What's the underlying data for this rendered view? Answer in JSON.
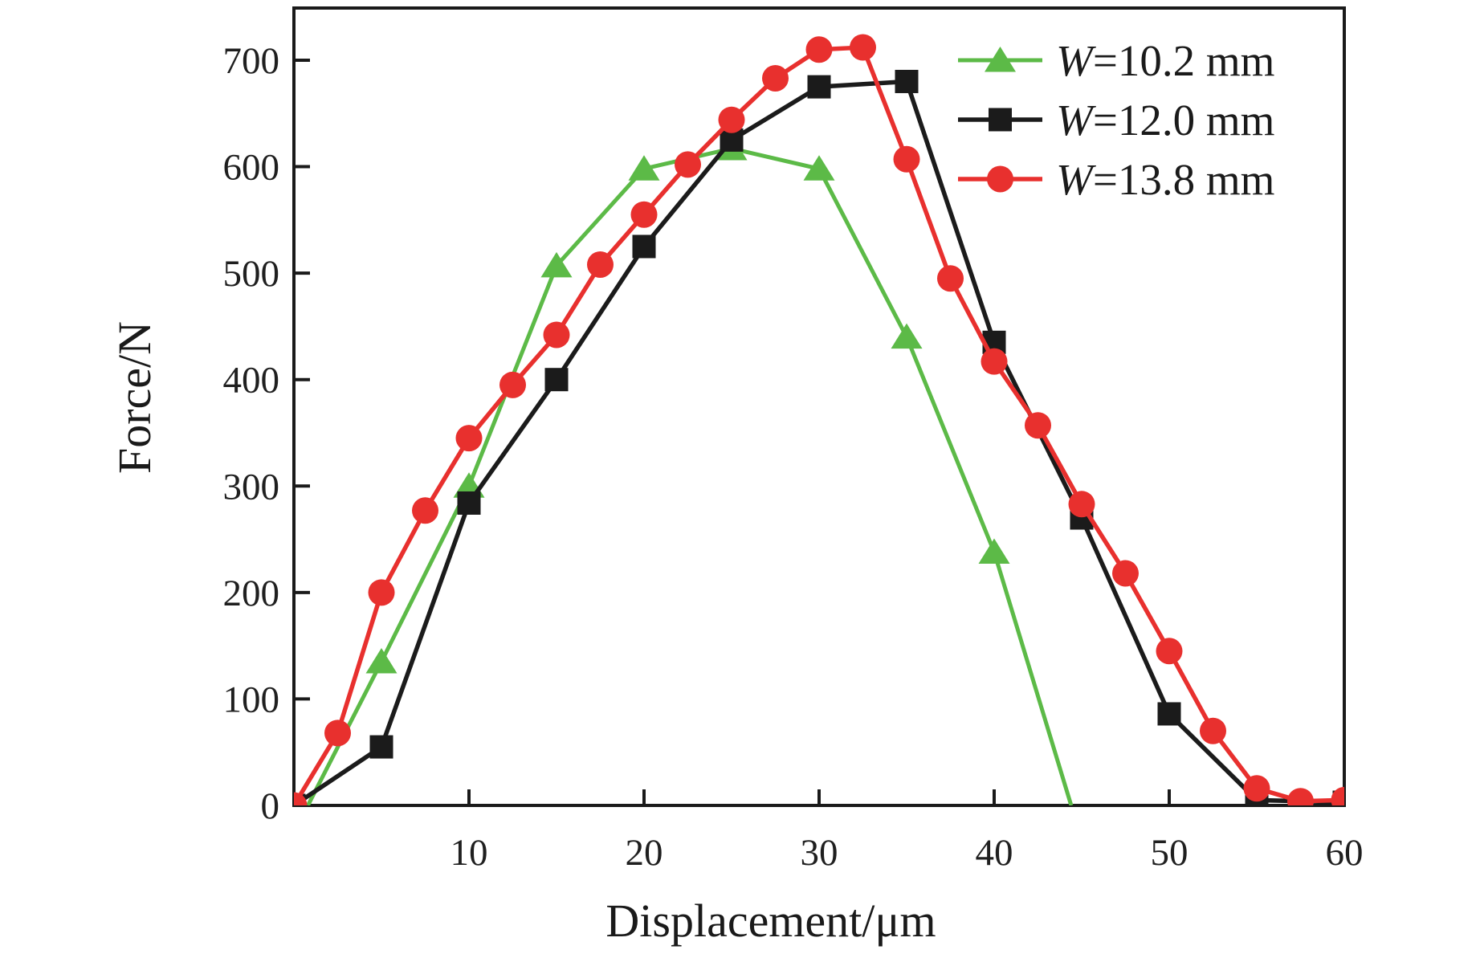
{
  "figure": {
    "background": "#ffffff",
    "axis_color": "#1a1a1a",
    "tick_label_color": "#1f1f1f"
  },
  "chart_data": {
    "type": "line",
    "title": "",
    "xlabel": "Displacement/μm",
    "ylabel": "Force/N",
    "xlim": [
      0,
      60
    ],
    "ylim": [
      0,
      749
    ],
    "xticks": [
      10,
      20,
      30,
      40,
      50,
      60
    ],
    "yticks": [
      0,
      100,
      200,
      300,
      400,
      500,
      600,
      700
    ],
    "grid": false,
    "legend_position": "top-right-inside",
    "series": [
      {
        "name": "W=10.2 mm",
        "color": "#5cba47",
        "marker": "triangle",
        "line_width": 5,
        "skip_marker_indices": [
          0,
          9
        ],
        "points": [
          [
            0.8,
            0
          ],
          [
            5,
            135
          ],
          [
            10,
            300
          ],
          [
            15,
            507
          ],
          [
            20,
            598
          ],
          [
            25,
            617
          ],
          [
            30,
            598
          ],
          [
            35,
            440
          ],
          [
            40,
            238
          ],
          [
            44.4,
            0
          ]
        ]
      },
      {
        "name": "W=12.0 mm",
        "color": "#1b1b1b",
        "marker": "square",
        "line_width": 5.5,
        "skip_marker_indices": [],
        "points": [
          [
            0,
            0
          ],
          [
            5,
            55
          ],
          [
            10,
            284
          ],
          [
            15,
            400
          ],
          [
            20,
            525
          ],
          [
            25,
            625
          ],
          [
            30,
            675
          ],
          [
            35,
            680
          ],
          [
            40,
            435
          ],
          [
            45,
            270
          ],
          [
            50,
            86
          ],
          [
            55,
            5
          ],
          [
            60,
            3
          ]
        ]
      },
      {
        "name": "W=13.8 mm",
        "color": "#e8302e",
        "marker": "circle",
        "line_width": 5.5,
        "skip_marker_indices": [],
        "points": [
          [
            0,
            0
          ],
          [
            2.5,
            68
          ],
          [
            5,
            200
          ],
          [
            7.5,
            277
          ],
          [
            10,
            345
          ],
          [
            12.5,
            395
          ],
          [
            15,
            442
          ],
          [
            17.5,
            508
          ],
          [
            20,
            555
          ],
          [
            22.5,
            602
          ],
          [
            25,
            644
          ],
          [
            27.5,
            683
          ],
          [
            30,
            710
          ],
          [
            32.5,
            712
          ],
          [
            35,
            607
          ],
          [
            37.5,
            495
          ],
          [
            40,
            417
          ],
          [
            42.5,
            357
          ],
          [
            45,
            283
          ],
          [
            47.5,
            218
          ],
          [
            50,
            145
          ],
          [
            52.5,
            70
          ],
          [
            55,
            16
          ],
          [
            57.5,
            4
          ],
          [
            60,
            5
          ]
        ]
      }
    ]
  }
}
